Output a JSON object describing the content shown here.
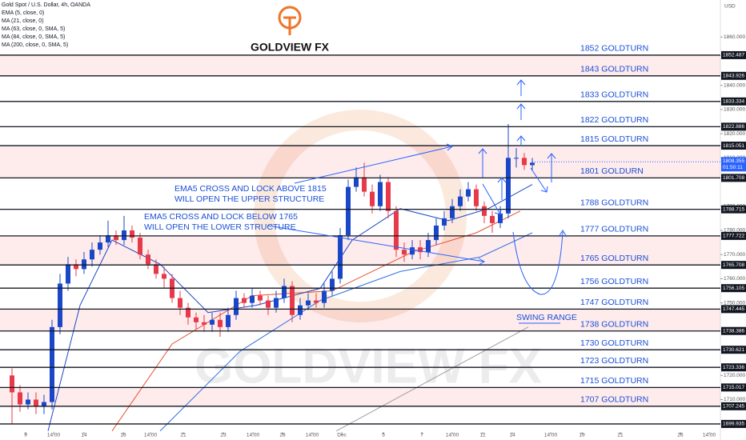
{
  "chart_data": {
    "type": "candlestick",
    "title": "Gold Spot / U.S. Dollar, 4h, OANDA",
    "indicators": [
      "EMA (5, close, 0)",
      "MA (21, close, 0)",
      "MA (63, close, 0, SMA, 5)",
      "MA (84, close, 0, SMA, 5)",
      "MA (200, close, 0, SMA, 5)"
    ],
    "currency": "USD",
    "brand": "GOLDVIEW FX",
    "annotations": [
      "EMA5 CROSS AND LOCK ABOVE 1815",
      "WILL OPEN THE UPPER STRUCTURE",
      "EMA5 CROSS AND LOCK BELOW 1765",
      "WILL OPEN THE LOWER STRUCTURE",
      "SWING RANGE"
    ],
    "ylim": [
      1696.6,
      1875.3
    ],
    "xlim": [
      -1.5,
      88.5
    ],
    "yticks": [
      {
        "value": 1860,
        "label": "1860.000"
      },
      {
        "value": 1840,
        "label": "1840.000"
      },
      {
        "value": 1830,
        "label": "1830.000"
      },
      {
        "value": 1820,
        "label": "1820.000"
      },
      {
        "value": 1810,
        "label": "1810.000"
      },
      {
        "value": 1790,
        "label": "1790.000"
      },
      {
        "value": 1780,
        "label": "1780.000"
      },
      {
        "value": 1770,
        "label": "1770.000"
      },
      {
        "value": 1760,
        "label": "1760.000"
      },
      {
        "value": 1750,
        "label": "1750.000"
      },
      {
        "value": 1720,
        "label": "1720.000"
      },
      {
        "value": 1710,
        "label": "1710.000"
      }
    ],
    "xticks": [
      {
        "value": 1.7,
        "label": "9"
      },
      {
        "value": 5.2,
        "label": "14:00"
      },
      {
        "value": 9,
        "label": "14"
      },
      {
        "value": 13.9,
        "label": "16"
      },
      {
        "value": 17.3,
        "label": "14:00"
      },
      {
        "value": 21.4,
        "label": "21"
      },
      {
        "value": 26.4,
        "label": "23"
      },
      {
        "value": 30.1,
        "label": "14:00"
      },
      {
        "value": 33.8,
        "label": "28"
      },
      {
        "value": 37.5,
        "label": "14:00"
      },
      {
        "value": 41.2,
        "label": "Dec"
      },
      {
        "value": 46.4,
        "label": "5"
      },
      {
        "value": 51.2,
        "label": "7"
      },
      {
        "value": 55,
        "label": "14:00"
      },
      {
        "value": 58.8,
        "label": "12"
      },
      {
        "value": 62.5,
        "label": "14"
      },
      {
        "value": 67.3,
        "label": "14:00"
      },
      {
        "value": 71.2,
        "label": "19"
      },
      {
        "value": 76,
        "label": "21"
      },
      {
        "value": 83.5,
        "label": "26"
      },
      {
        "value": 87.1,
        "label": "14:00"
      }
    ],
    "levels": [
      {
        "value": 1852.487,
        "name": "1852 GOLDTURN"
      },
      {
        "value": 1843.926,
        "name": "1843 GOLDTURN"
      },
      {
        "value": 1833.334,
        "name": "1833 GOLDTURN"
      },
      {
        "value": 1822.886,
        "name": "1822 GOLDTURN"
      },
      {
        "value": 1815.051,
        "name": "1815 GOLDTURN"
      },
      {
        "value": 1801.708,
        "name": "1801 GOLDURN"
      },
      {
        "value": 1788.715,
        "name": "1788 GOLDTURN"
      },
      {
        "value": 1777.722,
        "name": "1777 GOLDTURN"
      },
      {
        "value": 1765.708,
        "name": "1765 GOLDTURN"
      },
      {
        "value": 1756.105,
        "name": "1756 GOLDTURN"
      },
      {
        "value": 1747.445,
        "name": "1747 GOLDTURN"
      },
      {
        "value": 1738.386,
        "name": "1738 GOLDTURN"
      },
      {
        "value": 1730.621,
        "name": "1730 GOLDTURN"
      },
      {
        "value": 1723.336,
        "name": "1723 GOLDTURN"
      },
      {
        "value": 1715.017,
        "name": "1715 GOLDTURN"
      },
      {
        "value": 1707.245,
        "name": "1707 GOLDTURN"
      },
      {
        "value": 1699.935
      }
    ],
    "zones": [
      [
        1843.926,
        1852.487
      ],
      [
        1801.708,
        1815.051
      ],
      [
        1765.708,
        1777.722
      ],
      [
        1738.386,
        1747.445
      ],
      [
        1707.245,
        1715.017
      ]
    ],
    "current_price": {
      "value": 1808.355,
      "countdown": "01:50:11",
      "color": "#2962ff"
    },
    "up_color": "#1a47c8",
    "down_color": "#e8394a",
    "open": [
      1720,
      1713,
      1708,
      1710,
      1707,
      1709,
      1740,
      1758,
      1766,
      1764,
      1768,
      1772,
      1775,
      1778,
      1776,
      1780,
      1777,
      1770,
      1766,
      1762,
      1760,
      1752,
      1748,
      1744,
      1742,
      1741,
      1743,
      1740,
      1745,
      1752,
      1750,
      1753,
      1751,
      1748,
      1752,
      1757,
      1745,
      1749,
      1751,
      1750,
      1755,
      1760,
      1778,
      1798,
      1802,
      1796,
      1790,
      1800,
      1788,
      1772,
      1770,
      1773,
      1771,
      1776,
      1782,
      1785,
      1790,
      1794,
      1797,
      1790,
      1786,
      1783,
      1787,
      1810,
      1810,
      1807
    ],
    "high": [
      1723,
      1716,
      1713,
      1713,
      1712,
      1743,
      1762,
      1769,
      1768,
      1771,
      1775,
      1778,
      1784,
      1780,
      1786,
      1782,
      1779,
      1772,
      1768,
      1765,
      1762,
      1755,
      1750,
      1746,
      1745,
      1746,
      1746,
      1748,
      1755,
      1754,
      1756,
      1755,
      1753,
      1755,
      1760,
      1759,
      1752,
      1754,
      1754,
      1758,
      1763,
      1781,
      1801,
      1806,
      1808,
      1799,
      1803,
      1802,
      1790,
      1775,
      1776,
      1776,
      1779,
      1785,
      1788,
      1793,
      1797,
      1800,
      1799,
      1792,
      1788,
      1790,
      1824,
      1814,
      1812,
      1810
    ],
    "low": [
      1700,
      1705,
      1706,
      1704,
      1704,
      1706,
      1737,
      1755,
      1761,
      1762,
      1765,
      1770,
      1773,
      1774,
      1774,
      1775,
      1768,
      1764,
      1760,
      1756,
      1750,
      1745,
      1741,
      1739,
      1738,
      1738,
      1736,
      1738,
      1743,
      1748,
      1748,
      1749,
      1745,
      1746,
      1750,
      1742,
      1743,
      1747,
      1748,
      1748,
      1753,
      1758,
      1776,
      1796,
      1794,
      1787,
      1788,
      1785,
      1769,
      1767,
      1768,
      1768,
      1769,
      1774,
      1780,
      1783,
      1788,
      1792,
      1788,
      1783,
      1779,
      1781,
      1785,
      1806,
      1805,
      1805
    ],
    "close": [
      1713,
      1708,
      1710,
      1707,
      1709,
      1740,
      1758,
      1766,
      1764,
      1768,
      1772,
      1775,
      1778,
      1776,
      1780,
      1777,
      1770,
      1766,
      1762,
      1760,
      1752,
      1748,
      1744,
      1742,
      1741,
      1743,
      1740,
      1745,
      1752,
      1750,
      1753,
      1751,
      1748,
      1752,
      1757,
      1745,
      1749,
      1751,
      1750,
      1755,
      1760,
      1778,
      1798,
      1802,
      1796,
      1790,
      1800,
      1788,
      1772,
      1770,
      1773,
      1771,
      1776,
      1782,
      1785,
      1790,
      1794,
      1797,
      1790,
      1786,
      1783,
      1787,
      1810,
      1810,
      1807,
      1808
    ],
    "overlays": [
      {
        "color": "#e8502e",
        "x": [
          12.5,
          20,
          30,
          40,
          50,
          58,
          63.5
        ],
        "values": [
          1697,
          1733,
          1753,
          1755,
          1771,
          1779,
          1788
        ]
      },
      {
        "color": "#1a47c8",
        "x": [
          4.5,
          8.5,
          12.5,
          18.5,
          24.5,
          30.5,
          38.5,
          42.5,
          48.5,
          54.5,
          59.5,
          65
        ],
        "values": [
          1697,
          1749,
          1776,
          1766,
          1746,
          1749,
          1756,
          1776,
          1789,
          1784,
          1789,
          1799
        ]
      },
      {
        "color": "#2f6fe0",
        "x": [
          18.5,
          28.5,
          38.5,
          48.5,
          58.5,
          65
        ],
        "values": [
          1697,
          1730,
          1751,
          1763,
          1769,
          1779
        ]
      },
      {
        "color": "#9e9e9e",
        "x": [
          40.5,
          64.5
        ],
        "values": [
          1697,
          1740
        ]
      }
    ]
  }
}
